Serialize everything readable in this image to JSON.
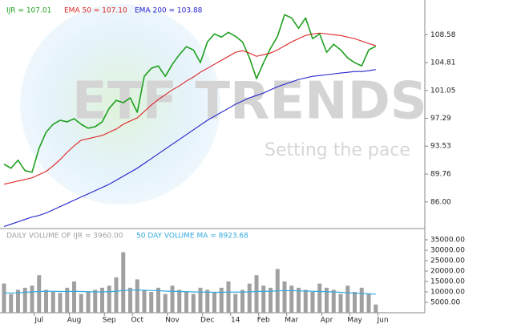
{
  "chart_data": [
    {
      "type": "line",
      "watermark": {
        "brand": "ETF TRENDS",
        "tagline": "Setting the pace"
      },
      "ylim": [
        82.4,
        112.4
      ],
      "yticks": [
        108.58,
        104.81,
        101.05,
        97.29,
        93.53,
        89.76,
        {
          "value": 86,
          "label": "86.00"
        }
      ],
      "series": [
        {
          "name": "IJR = 107.01",
          "color": "#1fa01f",
          "values": [
            91.09,
            90.55,
            91.63,
            90.22,
            90.01,
            93.25,
            95.41,
            96.48,
            97.02,
            96.81,
            97.24,
            96.48,
            95.95,
            96.16,
            96.81,
            98.64,
            99.72,
            99.4,
            100.05,
            98.1,
            102.96,
            104.04,
            104.37,
            102.96,
            104.58,
            105.88,
            106.96,
            106.53,
            104.8,
            107.61,
            108.69,
            108.26,
            108.9,
            108.36,
            107.61,
            105.45,
            102.64,
            104.8,
            106.74,
            108.36,
            111.28,
            110.85,
            109.44,
            110.85,
            108.04,
            108.69,
            106.2,
            107.28,
            106.53,
            105.45,
            104.8,
            104.37,
            106.53,
            107.01,
            null,
            null,
            null,
            null,
            null,
            null,
            null
          ]
        },
        {
          "name": "EMA 50 = 107.10",
          "color": "#dd2222",
          "values": [
            88.39,
            88.6,
            88.82,
            89.03,
            89.25,
            89.68,
            90.11,
            90.87,
            91.72,
            92.7,
            93.57,
            94.33,
            94.54,
            94.76,
            94.97,
            95.41,
            95.84,
            96.48,
            96.92,
            97.35,
            98.21,
            99.08,
            99.83,
            100.48,
            101.13,
            101.67,
            102.32,
            102.86,
            103.51,
            104.04,
            104.58,
            105.12,
            105.66,
            106.2,
            106.42,
            106.1,
            105.66,
            105.88,
            106.1,
            106.53,
            107.07,
            107.61,
            108.04,
            108.47,
            108.69,
            108.8,
            108.69,
            108.58,
            108.47,
            108.26,
            108.04,
            107.72,
            107.39,
            107.1,
            null,
            null,
            null,
            null,
            null,
            null,
            null
          ]
        },
        {
          "name": "EMA 200 = 103.88",
          "color": "#2222cc",
          "values": [
            82.67,
            82.99,
            83.31,
            83.64,
            83.96,
            84.17,
            84.5,
            84.93,
            85.36,
            85.79,
            86.23,
            86.66,
            87.09,
            87.52,
            87.95,
            88.39,
            88.93,
            89.47,
            90.01,
            90.55,
            91.2,
            91.84,
            92.49,
            93.14,
            93.79,
            94.43,
            95.08,
            95.73,
            96.38,
            97.02,
            97.57,
            98.1,
            98.64,
            99.18,
            99.62,
            100.05,
            100.37,
            100.7,
            101.13,
            101.56,
            101.88,
            102.21,
            102.53,
            102.75,
            102.96,
            103.07,
            103.18,
            103.29,
            103.4,
            103.5,
            103.61,
            103.61,
            103.72,
            103.88,
            null,
            null,
            null,
            null,
            null,
            null,
            null
          ]
        }
      ]
    },
    {
      "type": "bar",
      "categories": [
        null,
        null,
        null,
        null,
        null,
        "Jul",
        null,
        null,
        null,
        null,
        "Aug",
        null,
        null,
        null,
        null,
        "Sep",
        null,
        null,
        null,
        "Oct",
        null,
        null,
        null,
        null,
        "Nov",
        null,
        null,
        null,
        null,
        "Dec",
        null,
        null,
        null,
        "14",
        null,
        null,
        null,
        "Feb",
        null,
        null,
        null,
        "Mar",
        null,
        null,
        null,
        null,
        "Apr",
        null,
        null,
        null,
        "May",
        null,
        null,
        null,
        "Jun",
        null,
        null,
        null,
        null,
        null,
        null
      ],
      "ylim": [
        0,
        37700
      ],
      "yticks": [
        {
          "value": 35000,
          "label": "35000.00"
        },
        {
          "value": 30000,
          "label": "30000.00"
        },
        {
          "value": 25000,
          "label": "25000.00"
        },
        {
          "value": 20000,
          "label": "20000.00"
        },
        {
          "value": 15000,
          "label": "15000.00"
        },
        {
          "value": 10000,
          "label": "10000.00"
        },
        {
          "value": 5000,
          "label": "5000.00"
        }
      ],
      "series": [
        {
          "name": "DAILY VOLUME OF IJR = 3960.00",
          "color": "#a0a0a0",
          "type": "bar",
          "values": [
            14000,
            9000,
            11000,
            12000,
            13000,
            18000,
            11000,
            10000,
            9500,
            12000,
            15000,
            9000,
            10000,
            11000,
            12000,
            13000,
            17000,
            29000,
            12000,
            16000,
            11000,
            10000,
            12000,
            9000,
            13000,
            11000,
            10000,
            9000,
            12000,
            11000,
            10000,
            12000,
            15000,
            9000,
            11000,
            14000,
            18000,
            13000,
            12000,
            21000,
            15000,
            13000,
            12000,
            11000,
            10000,
            14000,
            12000,
            11000,
            9000,
            13000,
            10000,
            12000,
            9000,
            3960,
            null,
            null,
            null,
            null,
            null,
            null,
            null
          ]
        },
        {
          "name": "50 DAY VOLUME MA = 8923.68",
          "color": "#33aadd",
          "type": "line",
          "values": [
            9500,
            9500,
            9600,
            9800,
            10000,
            10200,
            10300,
            10300,
            10200,
            10200,
            10300,
            10200,
            10100,
            10000,
            10000,
            10100,
            10300,
            10700,
            10800,
            10900,
            10800,
            10700,
            10600,
            10400,
            10300,
            10200,
            10100,
            10000,
            9900,
            9900,
            9800,
            9800,
            9900,
            9900,
            9900,
            10000,
            10200,
            10300,
            10300,
            10500,
            10600,
            10600,
            10500,
            10400,
            10300,
            10200,
            10100,
            10000,
            9800,
            9600,
            9400,
            9200,
            9100,
            8923.68,
            null,
            null,
            null,
            null,
            null,
            null,
            null
          ]
        }
      ]
    }
  ]
}
